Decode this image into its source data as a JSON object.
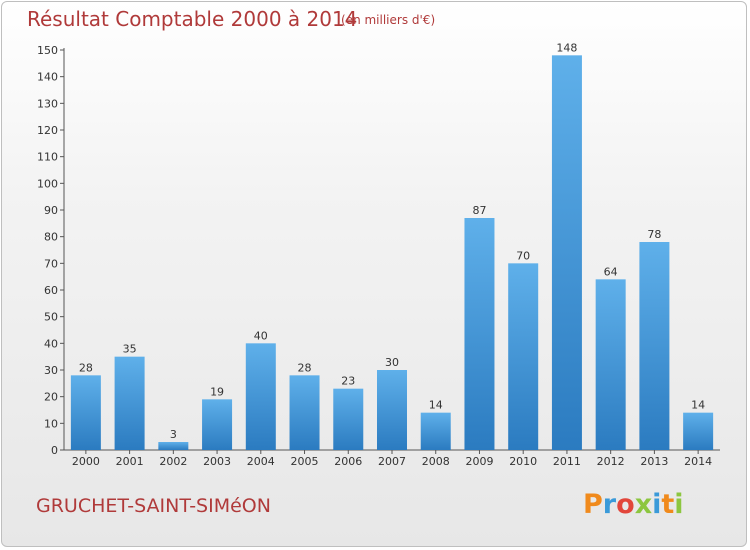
{
  "header": {
    "title": "Résultat Comptable 2000 à 2014",
    "unit": "(en milliers d'€)"
  },
  "footer": {
    "commune": "GRUCHET-SAINT-SIMéON",
    "logo": "Proxiti"
  },
  "colors": {
    "bar": "#4a9fe0",
    "bar_dark": "#2f7fc4",
    "title": "#b03a3a",
    "logo_letters": [
      "#f08a1c",
      "#3a9ad9",
      "#e2463b",
      "#8cc63f",
      "#3a9ad9",
      "#f08a1c",
      "#8cc63f"
    ]
  },
  "chart_data": {
    "type": "bar",
    "title": "Résultat Comptable 2000 à 2014",
    "xlabel": "",
    "ylabel": "",
    "ylim": [
      0,
      150
    ],
    "yticks": [
      0,
      10,
      20,
      30,
      40,
      50,
      60,
      70,
      80,
      90,
      100,
      110,
      120,
      130,
      140,
      150
    ],
    "grid": false,
    "categories": [
      "2000",
      "2001",
      "2002",
      "2003",
      "2004",
      "2005",
      "2006",
      "2007",
      "2008",
      "2009",
      "2010",
      "2011",
      "2012",
      "2013",
      "2014"
    ],
    "values": [
      28,
      35,
      3,
      19,
      40,
      28,
      23,
      30,
      14,
      87,
      70,
      148,
      64,
      78,
      14
    ]
  }
}
